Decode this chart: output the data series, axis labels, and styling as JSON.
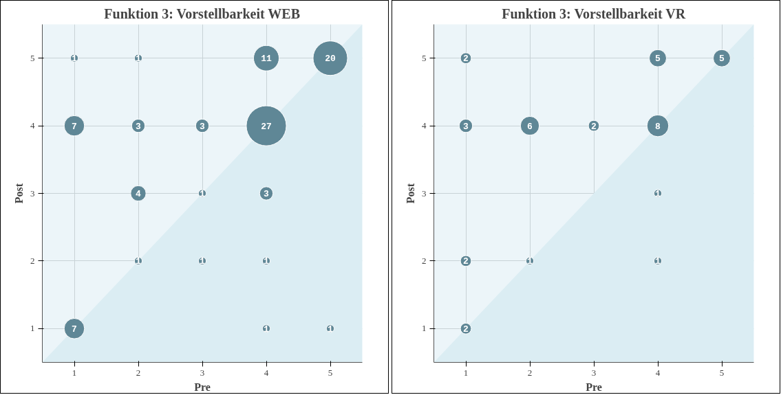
{
  "chart_data": [
    {
      "type": "bubble",
      "title": "Funktion 3: Vorstellbarkeit WEB",
      "xlabel": "Pre",
      "ylabel": "Post",
      "xlim": [
        0.5,
        5.5
      ],
      "ylim": [
        0.5,
        5.5
      ],
      "xticks": [
        1,
        2,
        3,
        4,
        5
      ],
      "yticks": [
        1,
        2,
        3,
        4,
        5
      ],
      "grid": true,
      "series": [
        {
          "type": "area",
          "color": "#dbedf3",
          "x": [
            0.5,
            5.5
          ],
          "values": [
            0.5,
            5.5
          ]
        },
        {
          "color": "#5f8796",
          "x": [
            1,
            2,
            4,
            5,
            1,
            2,
            3,
            4,
            2,
            3,
            4,
            2,
            3,
            4,
            1,
            4,
            5
          ],
          "values": [
            5,
            5,
            5,
            5,
            4,
            4,
            4,
            4,
            3,
            3,
            3,
            2,
            2,
            2,
            1,
            1,
            1
          ],
          "sizes": [
            1,
            1,
            11,
            20,
            7,
            3,
            3,
            27,
            4,
            1,
            3,
            1,
            1,
            1,
            7,
            1,
            1
          ],
          "value_labels": [
            "1",
            "1",
            "11",
            "20",
            "7",
            "3",
            "3",
            "27",
            "4",
            "1",
            "3",
            "1",
            "1",
            "1",
            "7",
            "1",
            "1"
          ]
        }
      ]
    },
    {
      "type": "bubble",
      "title": "Funktion 3: Vorstellbarkeit VR",
      "xlabel": "Pre",
      "ylabel": "Post",
      "xlim": [
        0.5,
        5.5
      ],
      "ylim": [
        0.5,
        5.5
      ],
      "xticks": [
        1,
        2,
        3,
        4,
        5
      ],
      "yticks": [
        1,
        2,
        3,
        4,
        5
      ],
      "grid": true,
      "series": [
        {
          "type": "area",
          "color": "#dbedf3",
          "x": [
            0.5,
            5.5
          ],
          "values": [
            0.5,
            5.5
          ]
        },
        {
          "color": "#5f8796",
          "x": [
            1,
            4,
            5,
            1,
            2,
            3,
            4,
            4,
            1,
            2,
            4,
            1
          ],
          "values": [
            5,
            5,
            5,
            4,
            4,
            4,
            4,
            3,
            2,
            2,
            2,
            1
          ],
          "sizes": [
            2,
            5,
            5,
            3,
            6,
            2,
            8,
            1,
            2,
            1,
            1,
            2
          ],
          "value_labels": [
            "2",
            "5",
            "5",
            "3",
            "6",
            "2",
            "8",
            "1",
            "2",
            "1",
            "1",
            "2"
          ]
        }
      ]
    }
  ]
}
